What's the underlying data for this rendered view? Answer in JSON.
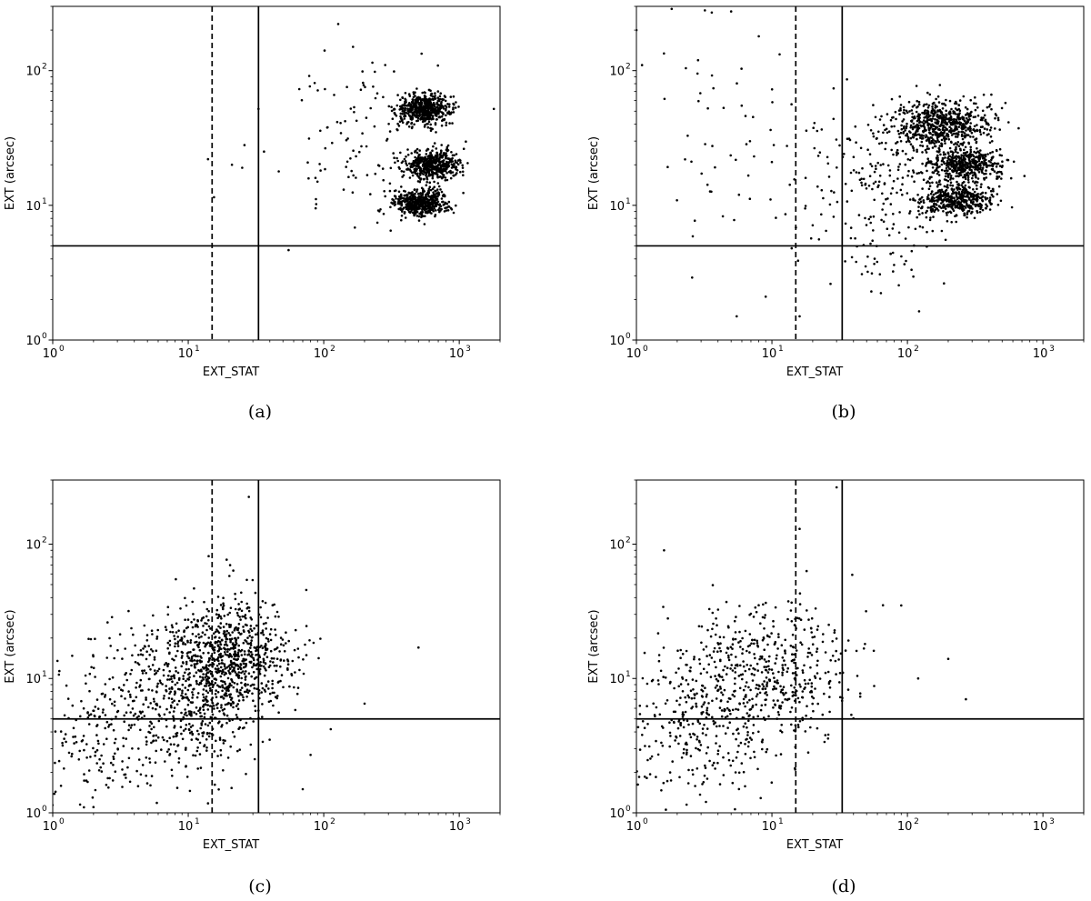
{
  "chart_data": [
    {
      "id": "a",
      "type": "scatter",
      "caption": "(a)",
      "xlabel": "EXT_STAT",
      "ylabel": "EXT (arcsec)",
      "xscale": "log",
      "yscale": "log",
      "xlim": [
        1,
        2000
      ],
      "ylim": [
        1,
        300
      ],
      "x_ticks": [
        {
          "value": 1,
          "base": "10",
          "exp": "0"
        },
        {
          "value": 10,
          "base": "10",
          "exp": "1"
        },
        {
          "value": 100,
          "base": "10",
          "exp": "2"
        },
        {
          "value": 1000,
          "base": "10",
          "exp": "3"
        }
      ],
      "y_ticks": [
        {
          "value": 1,
          "base": "10",
          "exp": "0"
        },
        {
          "value": 10,
          "base": "10",
          "exp": "1"
        },
        {
          "value": 100,
          "base": "10",
          "exp": "2"
        }
      ],
      "reference_lines": [
        {
          "axis": "x",
          "value": 15,
          "style": "dashed"
        },
        {
          "axis": "x",
          "value": 33,
          "style": "solid"
        },
        {
          "axis": "y",
          "value": 5,
          "style": "solid"
        }
      ],
      "clusters": [
        {
          "cx": 550,
          "cy": 52,
          "sx": 0.1,
          "sy": 0.055,
          "n": 550
        },
        {
          "cx": 650,
          "cy": 20,
          "sx": 0.1,
          "sy": 0.055,
          "n": 500
        },
        {
          "cx": 520,
          "cy": 10.5,
          "sx": 0.1,
          "sy": 0.05,
          "n": 500
        },
        {
          "cx": 200,
          "cy": 30,
          "sx": 0.3,
          "sy": 0.3,
          "n": 120
        }
      ],
      "points": [
        [
          14,
          22
        ],
        [
          15.5,
          11.5
        ],
        [
          21,
          20
        ],
        [
          25,
          19
        ],
        [
          26,
          28
        ],
        [
          33,
          52
        ],
        [
          1800,
          52
        ]
      ]
    },
    {
      "id": "b",
      "type": "scatter",
      "caption": "(b)",
      "xlabel": "EXT_STAT",
      "ylabel": "EXT (arcsec)",
      "xscale": "log",
      "yscale": "log",
      "xlim": [
        1,
        2000
      ],
      "ylim": [
        1,
        300
      ],
      "x_ticks": [
        {
          "value": 1,
          "base": "10",
          "exp": "0"
        },
        {
          "value": 10,
          "base": "10",
          "exp": "1"
        },
        {
          "value": 100,
          "base": "10",
          "exp": "2"
        },
        {
          "value": 1000,
          "base": "10",
          "exp": "3"
        }
      ],
      "y_ticks": [
        {
          "value": 1,
          "base": "10",
          "exp": "0"
        },
        {
          "value": 10,
          "base": "10",
          "exp": "1"
        },
        {
          "value": 100,
          "base": "10",
          "exp": "2"
        }
      ],
      "reference_lines": [
        {
          "axis": "x",
          "value": 15,
          "style": "dashed"
        },
        {
          "axis": "x",
          "value": 33,
          "style": "solid"
        },
        {
          "axis": "y",
          "value": 5,
          "style": "solid"
        }
      ],
      "clusters": [
        {
          "cx": 180,
          "cy": 40,
          "sx": 0.18,
          "sy": 0.09,
          "n": 650
        },
        {
          "cx": 260,
          "cy": 20,
          "sx": 0.14,
          "sy": 0.06,
          "n": 450
        },
        {
          "cx": 230,
          "cy": 11,
          "sx": 0.14,
          "sy": 0.06,
          "n": 450
        },
        {
          "cx": 60,
          "cy": 12,
          "sx": 0.25,
          "sy": 0.3,
          "n": 200
        },
        {
          "cx": 4,
          "cy": 30,
          "sx": 0.45,
          "sy": 0.45,
          "n": 75
        }
      ],
      "points": [
        [
          1.0,
          200
        ],
        [
          1.1,
          110
        ],
        [
          3.2,
          280
        ],
        [
          3.6,
          270
        ],
        [
          5.0,
          275
        ],
        [
          8.0,
          180
        ],
        [
          5.5,
          1.5
        ],
        [
          9.0,
          2.1
        ],
        [
          14,
          4.8
        ],
        [
          16,
          1.5
        ]
      ]
    },
    {
      "id": "c",
      "type": "scatter",
      "caption": "(c)",
      "xlabel": "EXT_STAT",
      "ylabel": "EXT (arcsec)",
      "xscale": "log",
      "yscale": "log",
      "xlim": [
        1,
        2000
      ],
      "ylim": [
        1,
        300
      ],
      "x_ticks": [
        {
          "value": 1,
          "base": "10",
          "exp": "0"
        },
        {
          "value": 10,
          "base": "10",
          "exp": "1"
        },
        {
          "value": 100,
          "base": "10",
          "exp": "2"
        },
        {
          "value": 1000,
          "base": "10",
          "exp": "3"
        }
      ],
      "y_ticks": [
        {
          "value": 1,
          "base": "10",
          "exp": "0"
        },
        {
          "value": 10,
          "base": "10",
          "exp": "1"
        },
        {
          "value": 100,
          "base": "10",
          "exp": "2"
        }
      ],
      "reference_lines": [
        {
          "axis": "x",
          "value": 15,
          "style": "dashed"
        },
        {
          "axis": "x",
          "value": 33,
          "style": "solid"
        },
        {
          "axis": "y",
          "value": 5,
          "style": "solid"
        }
      ],
      "clusters": [
        {
          "cx": 22,
          "cy": 14,
          "sx": 0.22,
          "sy": 0.22,
          "n": 700
        },
        {
          "cx": 9,
          "cy": 8,
          "sx": 0.3,
          "sy": 0.3,
          "n": 550
        },
        {
          "cx": 2.5,
          "cy": 3.5,
          "sx": 0.3,
          "sy": 0.3,
          "n": 200
        }
      ],
      "points": [
        [
          28,
          225
        ],
        [
          500,
          17
        ],
        [
          200,
          6.5
        ],
        [
          70,
          1.5
        ],
        [
          80,
          2.7
        ]
      ]
    },
    {
      "id": "d",
      "type": "scatter",
      "caption": "(d)",
      "xlabel": "EXT_STAT",
      "ylabel": "EXT (arcsec)",
      "xscale": "log",
      "yscale": "log",
      "xlim": [
        1,
        2000
      ],
      "ylim": [
        1,
        300
      ],
      "x_ticks": [
        {
          "value": 1,
          "base": "10",
          "exp": "0"
        },
        {
          "value": 10,
          "base": "10",
          "exp": "1"
        },
        {
          "value": 100,
          "base": "10",
          "exp": "2"
        },
        {
          "value": 1000,
          "base": "10",
          "exp": "3"
        }
      ],
      "y_ticks": [
        {
          "value": 1,
          "base": "10",
          "exp": "0"
        },
        {
          "value": 10,
          "base": "10",
          "exp": "1"
        },
        {
          "value": 100,
          "base": "10",
          "exp": "2"
        }
      ],
      "reference_lines": [
        {
          "axis": "x",
          "value": 15,
          "style": "dashed"
        },
        {
          "axis": "x",
          "value": 33,
          "style": "solid"
        },
        {
          "axis": "y",
          "value": 5,
          "style": "solid"
        }
      ],
      "clusters": [
        {
          "cx": 10,
          "cy": 12,
          "sx": 0.28,
          "sy": 0.25,
          "n": 450
        },
        {
          "cx": 3,
          "cy": 5,
          "sx": 0.3,
          "sy": 0.3,
          "n": 350
        }
      ],
      "points": [
        [
          1.6,
          90
        ],
        [
          30,
          265
        ],
        [
          16,
          130
        ],
        [
          270,
          7
        ],
        [
          200,
          14
        ],
        [
          120,
          10
        ],
        [
          90,
          35
        ]
      ]
    }
  ]
}
